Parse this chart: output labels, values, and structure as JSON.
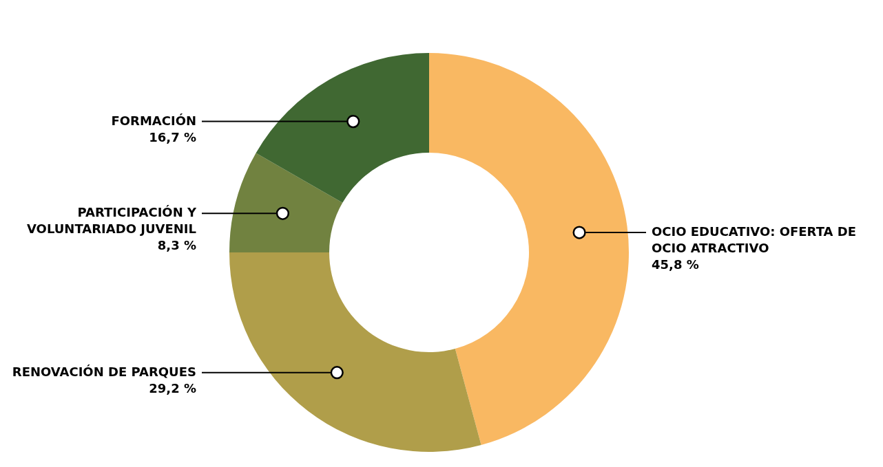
{
  "chart_data": {
    "type": "donut",
    "categories": [
      "OCIO EDUCATIVO: OFERTA DE OCIO ATRACTIVO",
      "RENOVACIÓN DE PARQUES",
      "PARTICIPACIÓN Y VOLUNTARIADO JUVENIL",
      "FORMACIÓN"
    ],
    "values": [
      45.8,
      29.2,
      8.3,
      16.7
    ],
    "colors": [
      "#f9b862",
      "#b09e4a",
      "#718240",
      "#406832"
    ],
    "value_labels": [
      "45,8 %",
      "29,2 %",
      "8,3 %",
      "16,7 %"
    ]
  }
}
